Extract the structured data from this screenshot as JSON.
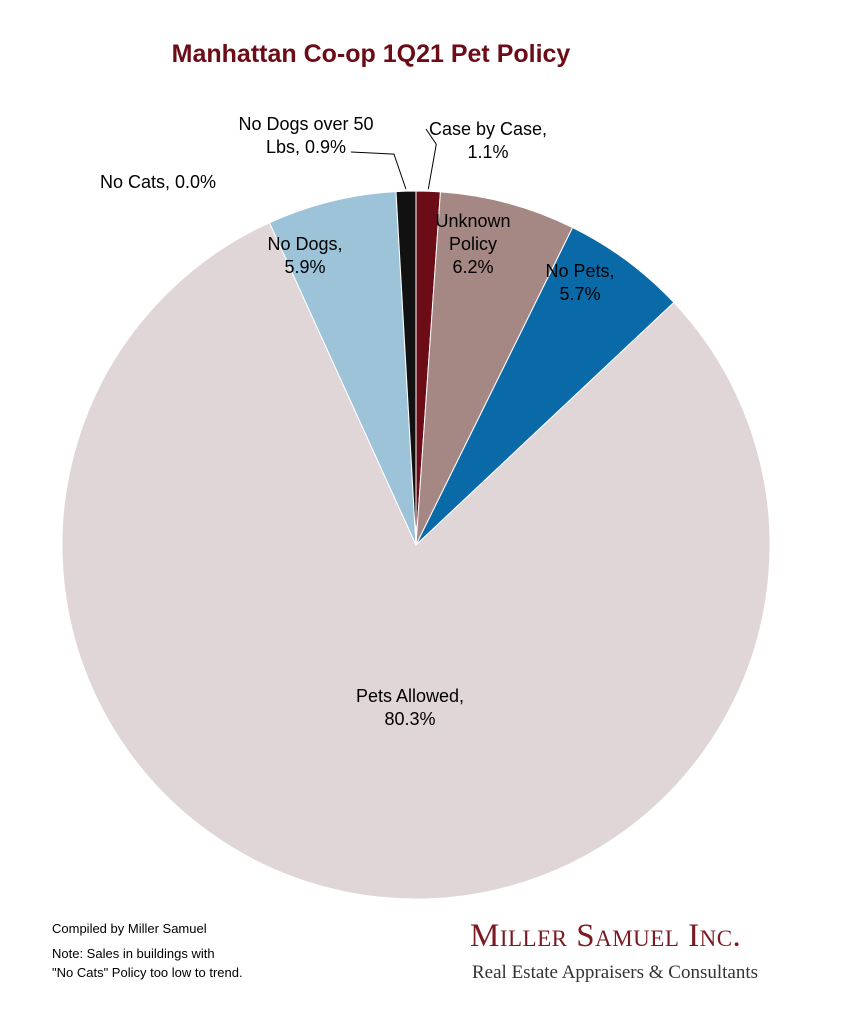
{
  "chart_data": {
    "type": "pie",
    "title": "Manhattan Co-op 1Q21 Pet Policy",
    "slices": [
      {
        "name": "Case by Case",
        "value": 1.1,
        "label": [
          "Case by Case,",
          "1.1%"
        ],
        "color": "#6b0c17"
      },
      {
        "name": "Unknown Policy",
        "value": 6.2,
        "label": [
          "Unknown",
          "Policy",
          "6.2%"
        ],
        "color": "#a58884"
      },
      {
        "name": "No Pets",
        "value": 5.7,
        "label": [
          "No Pets,",
          "5.7%"
        ],
        "color": "#0a6aa8"
      },
      {
        "name": "Pets Allowed",
        "value": 80.3,
        "label": [
          "Pets Allowed,",
          "80.3%"
        ],
        "color": "#e0d5d7"
      },
      {
        "name": "No Cats",
        "value": 0.0,
        "label": [
          "No Cats, 0.0%"
        ],
        "color": "#c9c9c9"
      },
      {
        "name": "No Dogs",
        "value": 5.9,
        "label": [
          "No Dogs,",
          "5.9%"
        ],
        "color": "#9dc3d9"
      },
      {
        "name": "No Dogs over 50 Lbs",
        "value": 0.9,
        "label": [
          "No Dogs over 50",
          "Lbs, 0.9%"
        ],
        "color": "#111111"
      }
    ],
    "start": "12 o'clock, clockwise from Case by Case ending with No Dogs over 50 Lbs"
  },
  "colors": {
    "title": "#6b0c17",
    "logo": "#7a1a22",
    "tagline": "#333333",
    "leader": "#000000"
  },
  "footer": {
    "compiled": "Compiled by Miller Samuel",
    "note_line1": "Note: Sales in buildings with",
    "note_line2": "\"No Cats\" Policy too low to trend."
  },
  "logo": {
    "name": "Miller Samuel Inc.",
    "tagline": "Real Estate Appraisers & Consultants"
  }
}
